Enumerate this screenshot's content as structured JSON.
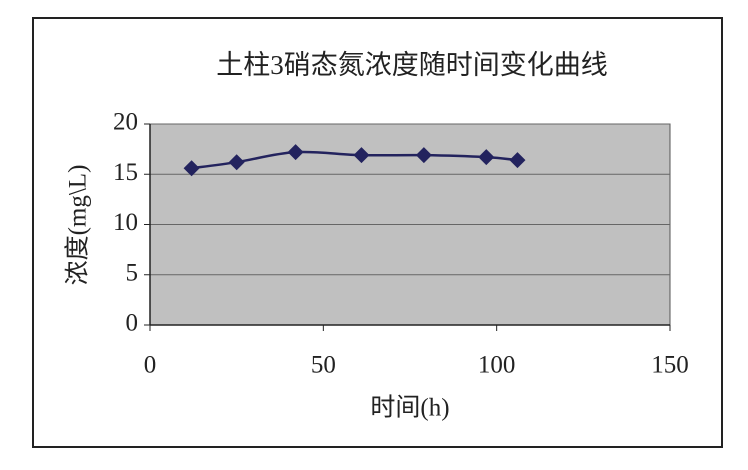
{
  "chart_data": {
    "type": "line",
    "title": "土柱3硝态氮浓度随时间变化曲线",
    "x_label": "时间(h)",
    "y_label": "浓度(mg\\L)",
    "x": [
      12,
      25,
      42,
      61,
      79,
      97,
      106
    ],
    "series": [
      {
        "color": "#23235e",
        "values": [
          15.6,
          16.2,
          17.2,
          16.9,
          16.9,
          16.7,
          16.4
        ]
      }
    ],
    "xlim": [
      0,
      150
    ],
    "xticks": [
      0,
      50,
      100,
      150
    ],
    "ylim": [
      0,
      20
    ],
    "yticks": [
      0,
      5,
      10,
      15,
      20
    ],
    "grid": true,
    "smooth": true
  }
}
